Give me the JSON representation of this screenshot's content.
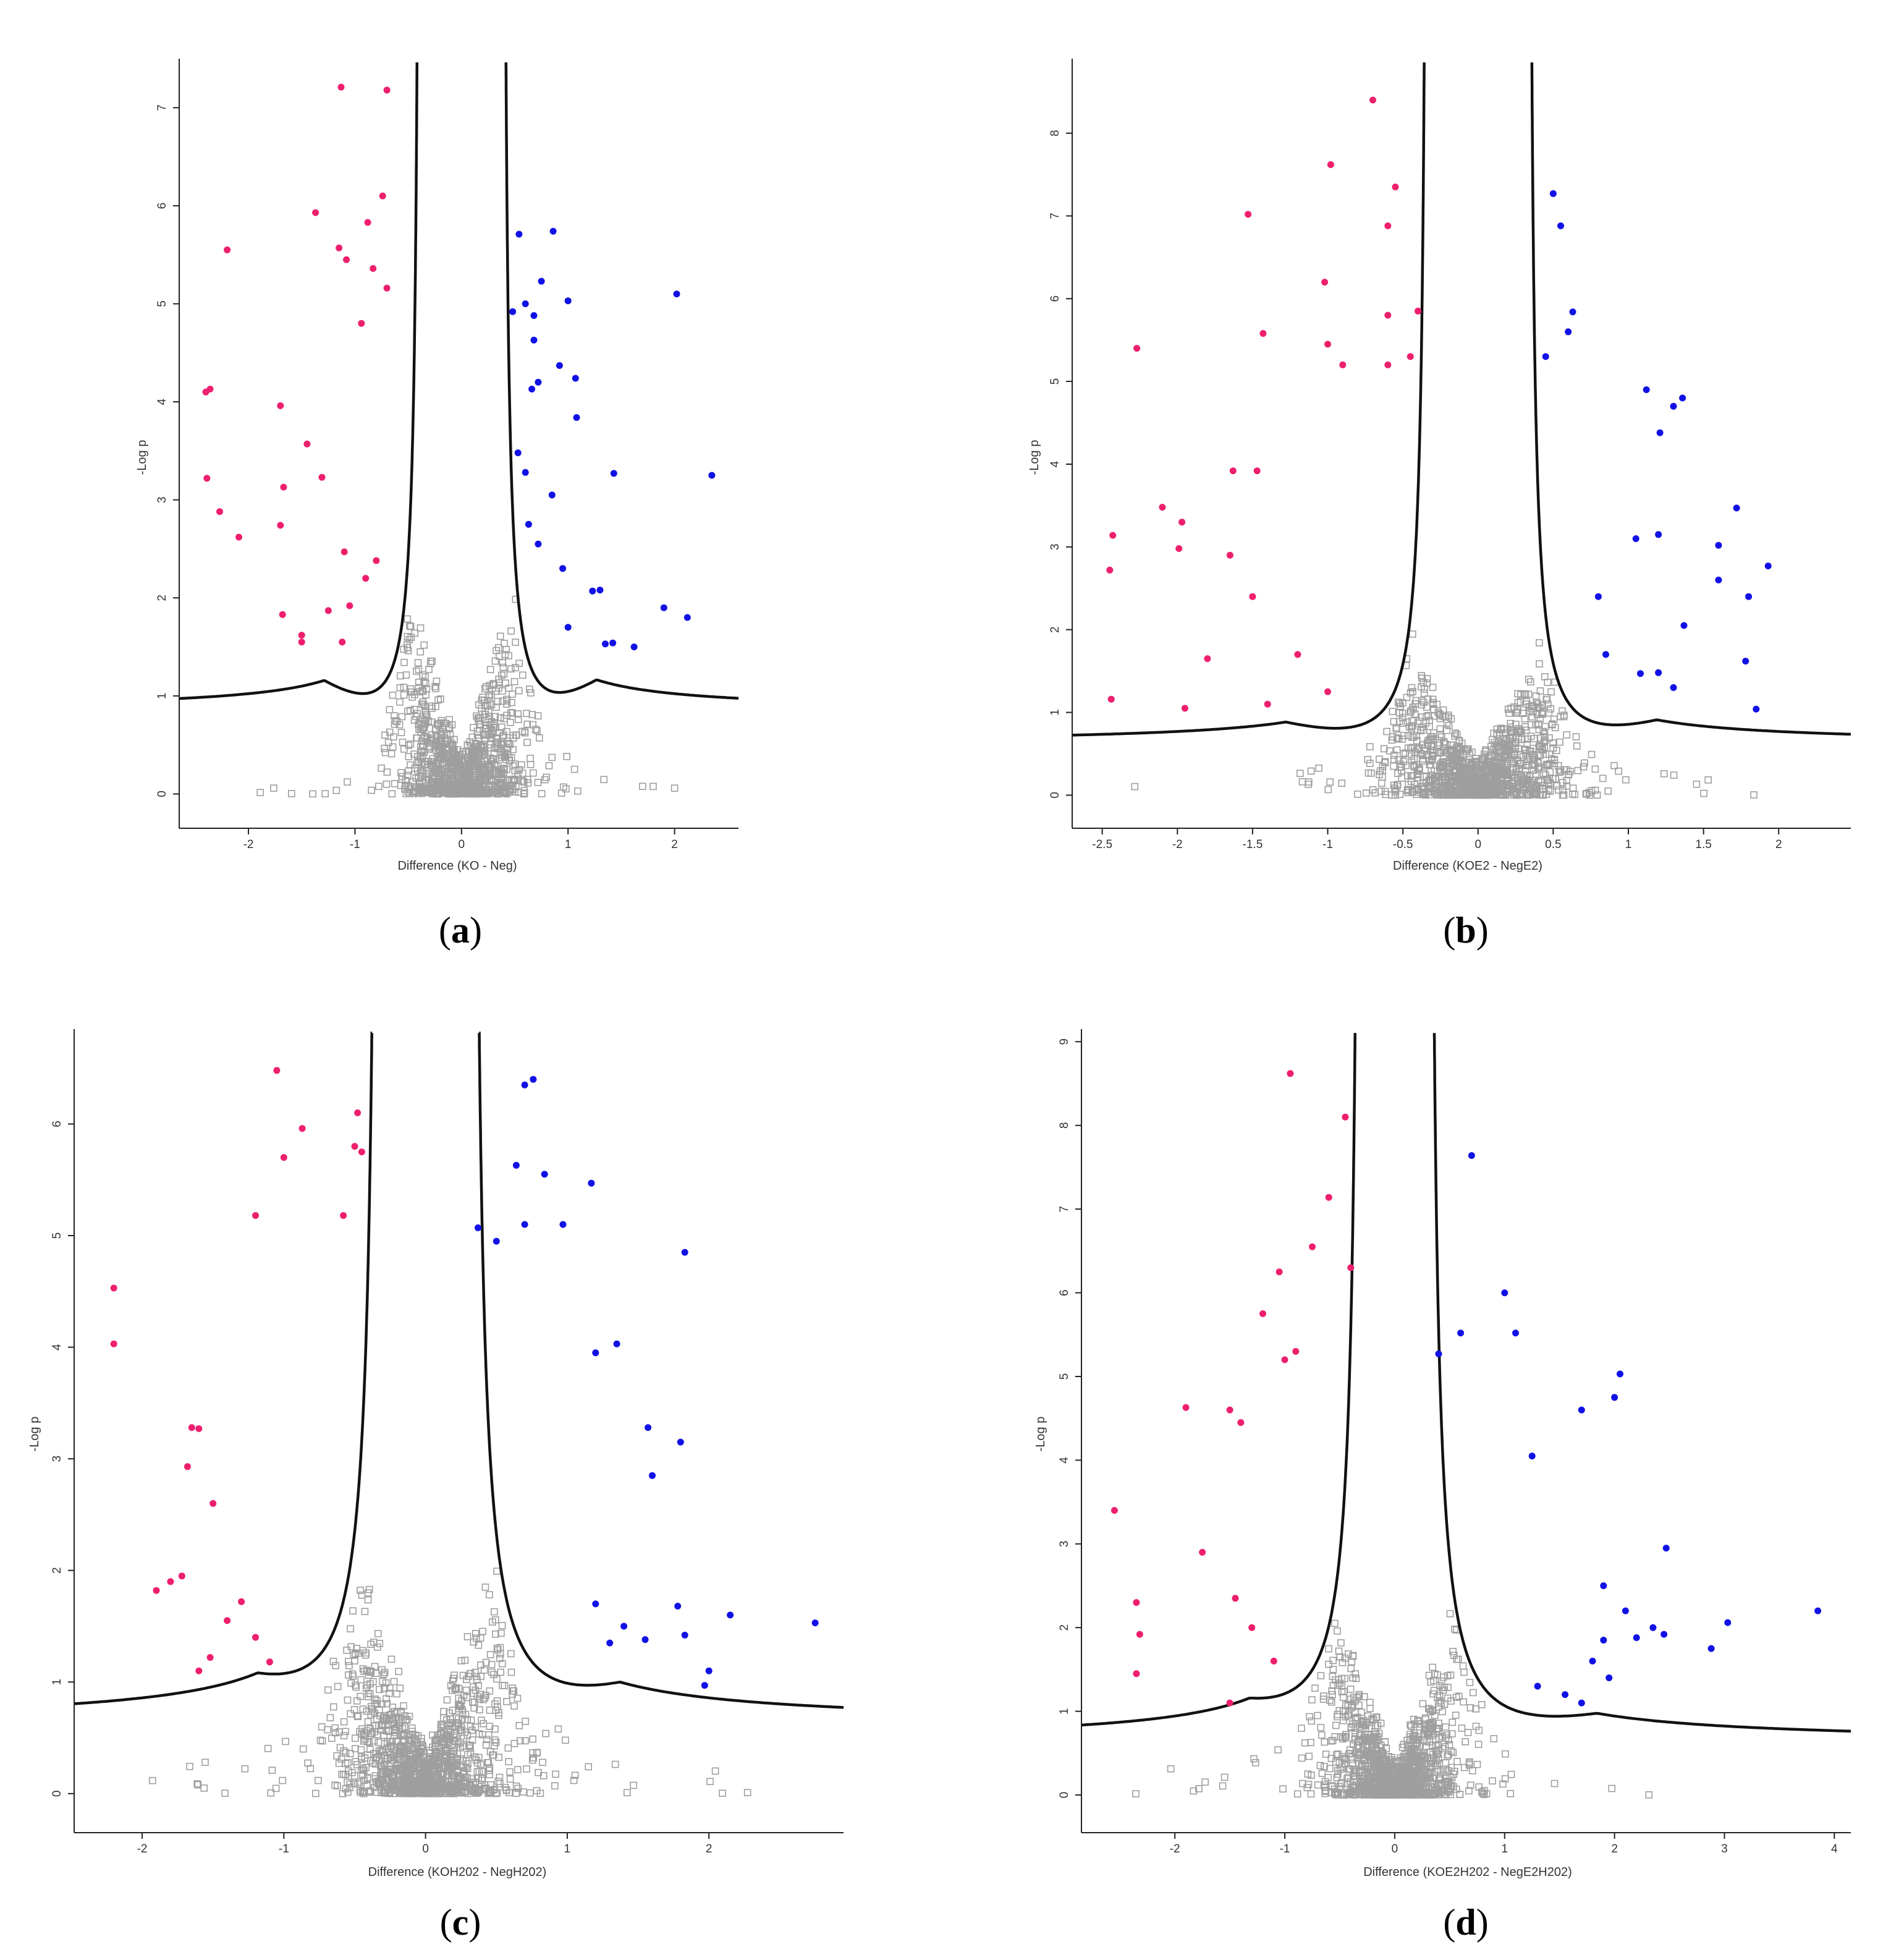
{
  "figure": {
    "colors": {
      "up": "#1111e6",
      "down": "#ee1f6e",
      "ns": "#9e9e9e",
      "threshold": "#111111",
      "axis": "#222222"
    }
  },
  "chart_data": [
    {
      "panel": "a",
      "type": "scatter",
      "subtype": "volcano",
      "xlabel": "Difference (KO - Neg)",
      "ylabel": "-Log p",
      "xlim": [
        -2.65,
        2.6
      ],
      "ylim": [
        -0.35,
        7.5
      ],
      "xticks": [
        -2,
        -1,
        0,
        1,
        2
      ],
      "yticks": [
        0,
        1,
        2,
        3,
        4,
        5,
        6,
        7
      ],
      "threshold": {
        "s0": 0.38,
        "c": 0.28
      },
      "n_background": 1050,
      "seed": 11,
      "down": [
        [
          -1.13,
          7.21
        ],
        [
          -0.7,
          7.18
        ],
        [
          -0.74,
          6.1
        ],
        [
          -1.37,
          5.93
        ],
        [
          -0.88,
          5.83
        ],
        [
          -2.2,
          5.55
        ],
        [
          -1.15,
          5.57
        ],
        [
          -1.08,
          5.45
        ],
        [
          -0.83,
          5.36
        ],
        [
          -0.7,
          5.16
        ],
        [
          -0.94,
          4.8
        ],
        [
          -2.36,
          4.13
        ],
        [
          -2.4,
          4.1
        ],
        [
          -1.7,
          3.96
        ],
        [
          -1.45,
          3.57
        ],
        [
          -1.67,
          3.13
        ],
        [
          -1.31,
          3.23
        ],
        [
          -2.39,
          3.22
        ],
        [
          -2.27,
          2.88
        ],
        [
          -2.09,
          2.62
        ],
        [
          -1.7,
          2.74
        ],
        [
          -1.1,
          2.47
        ],
        [
          -1.68,
          1.83
        ],
        [
          -1.5,
          1.62
        ],
        [
          -1.5,
          1.55
        ],
        [
          -1.25,
          1.87
        ],
        [
          -1.12,
          1.55
        ],
        [
          -1.05,
          1.92
        ],
        [
          -0.9,
          2.2
        ],
        [
          -0.8,
          2.38
        ]
      ],
      "up": [
        [
          0.86,
          5.74
        ],
        [
          0.54,
          5.71
        ],
        [
          2.02,
          5.1
        ],
        [
          0.75,
          5.23
        ],
        [
          0.48,
          4.92
        ],
        [
          0.6,
          5.0
        ],
        [
          0.68,
          4.88
        ],
        [
          1.0,
          5.03
        ],
        [
          0.68,
          4.63
        ],
        [
          0.92,
          4.37
        ],
        [
          0.72,
          4.2
        ],
        [
          1.07,
          4.24
        ],
        [
          0.66,
          4.13
        ],
        [
          1.08,
          3.84
        ],
        [
          0.53,
          3.48
        ],
        [
          0.6,
          3.28
        ],
        [
          0.85,
          3.05
        ],
        [
          1.43,
          3.27
        ],
        [
          2.35,
          3.25
        ],
        [
          0.63,
          2.75
        ],
        [
          0.72,
          2.55
        ],
        [
          1.23,
          2.07
        ],
        [
          1.3,
          2.08
        ],
        [
          1.0,
          1.7
        ],
        [
          1.9,
          1.9
        ],
        [
          2.12,
          1.8
        ],
        [
          1.35,
          1.53
        ],
        [
          1.42,
          1.54
        ],
        [
          1.62,
          1.5
        ],
        [
          0.95,
          2.3
        ]
      ]
    },
    {
      "panel": "b",
      "type": "scatter",
      "subtype": "volcano",
      "xlabel": "Difference (KOE2 - NegE2)",
      "ylabel": "-Log p",
      "xlim": [
        -2.7,
        2.48
      ],
      "ylim": [
        -0.4,
        8.9
      ],
      "xticks": [
        -2.5,
        -2,
        -1.5,
        -1,
        -0.5,
        0,
        0.5,
        1,
        1.5,
        2
      ],
      "yticks": [
        0,
        1,
        2,
        3,
        4,
        5,
        6,
        7,
        8
      ],
      "threshold": {
        "s0": 0.33,
        "c": 0.25
      },
      "n_background": 1200,
      "seed": 23,
      "down": [
        [
          -0.7,
          8.4
        ],
        [
          -0.98,
          7.62
        ],
        [
          -0.55,
          7.35
        ],
        [
          -1.53,
          7.02
        ],
        [
          -0.6,
          6.88
        ],
        [
          -1.02,
          6.2
        ],
        [
          -1.43,
          5.58
        ],
        [
          -2.27,
          5.4
        ],
        [
          -0.6,
          5.8
        ],
        [
          -0.4,
          5.85
        ],
        [
          -1.0,
          5.45
        ],
        [
          -0.9,
          5.2
        ],
        [
          -0.6,
          5.2
        ],
        [
          -0.45,
          5.3
        ],
        [
          -1.63,
          3.92
        ],
        [
          -1.47,
          3.92
        ],
        [
          -2.1,
          3.48
        ],
        [
          -2.43,
          3.14
        ],
        [
          -2.45,
          2.72
        ],
        [
          -1.97,
          3.3
        ],
        [
          -1.99,
          2.98
        ],
        [
          -1.65,
          2.9
        ],
        [
          -1.5,
          2.4
        ],
        [
          -1.8,
          1.65
        ],
        [
          -1.95,
          1.05
        ],
        [
          -2.44,
          1.16
        ],
        [
          -1.4,
          1.1
        ],
        [
          -1.2,
          1.7
        ],
        [
          -1.0,
          1.25
        ]
      ],
      "up": [
        [
          0.5,
          7.27
        ],
        [
          0.55,
          6.88
        ],
        [
          0.63,
          5.84
        ],
        [
          0.6,
          5.6
        ],
        [
          0.45,
          5.3
        ],
        [
          1.12,
          4.9
        ],
        [
          1.3,
          4.7
        ],
        [
          1.36,
          4.8
        ],
        [
          1.21,
          4.38
        ],
        [
          1.72,
          3.47
        ],
        [
          1.6,
          3.02
        ],
        [
          1.6,
          2.6
        ],
        [
          1.93,
          2.77
        ],
        [
          1.8,
          2.4
        ],
        [
          1.37,
          2.05
        ],
        [
          1.78,
          1.62
        ],
        [
          1.85,
          1.04
        ],
        [
          1.3,
          1.3
        ],
        [
          1.2,
          1.48
        ],
        [
          1.08,
          1.47
        ],
        [
          0.85,
          1.7
        ],
        [
          0.8,
          2.4
        ],
        [
          1.05,
          3.1
        ],
        [
          1.2,
          3.15
        ]
      ]
    },
    {
      "panel": "c",
      "type": "scatter",
      "subtype": "volcano",
      "xlabel": "Difference (KOH202 - NegH202)",
      "ylabel": "-Log p",
      "xlim": [
        -2.48,
        2.95
      ],
      "ylim": [
        -0.35,
        6.85
      ],
      "xticks": [
        -2,
        -1,
        0,
        1,
        2
      ],
      "yticks": [
        0,
        1,
        2,
        3,
        4,
        5,
        6
      ],
      "threshold": {
        "s0": 0.32,
        "c": 0.4
      },
      "n_background": 1200,
      "seed": 37,
      "down": [
        [
          -1.05,
          6.48
        ],
        [
          -0.48,
          6.1
        ],
        [
          -0.87,
          5.96
        ],
        [
          -0.5,
          5.8
        ],
        [
          -0.45,
          5.75
        ],
        [
          -1.0,
          5.7
        ],
        [
          -1.2,
          5.18
        ],
        [
          -0.58,
          5.18
        ],
        [
          -2.2,
          4.53
        ],
        [
          -2.2,
          4.03
        ],
        [
          -1.65,
          3.28
        ],
        [
          -1.6,
          3.27
        ],
        [
          -1.68,
          2.93
        ],
        [
          -1.5,
          2.6
        ],
        [
          -1.72,
          1.95
        ],
        [
          -1.8,
          1.9
        ],
        [
          -1.9,
          1.82
        ],
        [
          -1.52,
          1.22
        ],
        [
          -1.6,
          1.1
        ],
        [
          -1.4,
          1.55
        ],
        [
          -1.3,
          1.72
        ],
        [
          -1.1,
          1.18
        ],
        [
          -1.2,
          1.4
        ]
      ],
      "up": [
        [
          0.76,
          6.4
        ],
        [
          0.7,
          6.35
        ],
        [
          0.64,
          5.63
        ],
        [
          0.84,
          5.55
        ],
        [
          1.17,
          5.47
        ],
        [
          0.97,
          5.1
        ],
        [
          0.37,
          5.07
        ],
        [
          1.83,
          4.85
        ],
        [
          0.5,
          4.95
        ],
        [
          0.7,
          5.1
        ],
        [
          1.35,
          4.03
        ],
        [
          1.2,
          3.95
        ],
        [
          1.8,
          3.15
        ],
        [
          1.57,
          3.28
        ],
        [
          1.6,
          2.85
        ],
        [
          2.75,
          1.53
        ],
        [
          2.15,
          1.6
        ],
        [
          1.78,
          1.68
        ],
        [
          1.55,
          1.38
        ],
        [
          1.83,
          1.42
        ],
        [
          2.0,
          1.1
        ],
        [
          1.97,
          0.97
        ],
        [
          1.4,
          1.5
        ],
        [
          1.3,
          1.35
        ],
        [
          1.2,
          1.7
        ]
      ]
    },
    {
      "panel": "d",
      "type": "scatter",
      "subtype": "volcano",
      "xlabel": "Difference (KOE2H202 - NegE2H202)",
      "ylabel": "-Log p",
      "xlim": [
        -2.85,
        4.15
      ],
      "ylim": [
        -0.45,
        9.15
      ],
      "xticks": [
        -2,
        -1,
        0,
        1,
        2,
        3,
        4
      ],
      "yticks": [
        0,
        1,
        2,
        3,
        4,
        5,
        6,
        7,
        8,
        9
      ],
      "threshold": {
        "s0": 0.3,
        "c": 0.55
      },
      "n_background": 1200,
      "seed": 53,
      "down": [
        [
          -0.95,
          8.62
        ],
        [
          -0.45,
          8.1
        ],
        [
          -0.6,
          7.14
        ],
        [
          -0.75,
          6.55
        ],
        [
          -0.4,
          6.3
        ],
        [
          -1.05,
          6.25
        ],
        [
          -1.2,
          5.75
        ],
        [
          -0.9,
          5.3
        ],
        [
          -1.0,
          5.2
        ],
        [
          -1.9,
          4.63
        ],
        [
          -1.5,
          4.6
        ],
        [
          -1.4,
          4.45
        ],
        [
          -2.55,
          3.4
        ],
        [
          -1.75,
          2.9
        ],
        [
          -2.35,
          2.3
        ],
        [
          -2.32,
          1.92
        ],
        [
          -2.35,
          1.45
        ],
        [
          -1.45,
          2.35
        ],
        [
          -1.3,
          2.0
        ],
        [
          -1.5,
          1.1
        ],
        [
          -1.1,
          1.6
        ]
      ],
      "up": [
        [
          0.7,
          7.64
        ],
        [
          1.0,
          6.0
        ],
        [
          1.1,
          5.52
        ],
        [
          0.6,
          5.52
        ],
        [
          0.4,
          5.27
        ],
        [
          2.05,
          5.03
        ],
        [
          2.0,
          4.75
        ],
        [
          1.7,
          4.6
        ],
        [
          1.25,
          4.05
        ],
        [
          3.85,
          2.2
        ],
        [
          3.03,
          2.06
        ],
        [
          2.88,
          1.75
        ],
        [
          2.45,
          1.92
        ],
        [
          2.35,
          2.0
        ],
        [
          2.2,
          1.88
        ],
        [
          2.1,
          2.2
        ],
        [
          1.9,
          2.5
        ],
        [
          2.47,
          2.95
        ],
        [
          1.95,
          1.4
        ],
        [
          1.8,
          1.6
        ],
        [
          1.9,
          1.85
        ],
        [
          1.55,
          1.2
        ],
        [
          1.7,
          1.1
        ],
        [
          1.3,
          1.3
        ]
      ]
    }
  ],
  "captions": [
    {
      "open": "(",
      "letter": "a",
      "close": ")"
    },
    {
      "open": "(",
      "letter": "b",
      "close": ")"
    },
    {
      "open": "(",
      "letter": "c",
      "close": ")"
    },
    {
      "open": "(",
      "letter": "d",
      "close": ")"
    }
  ]
}
